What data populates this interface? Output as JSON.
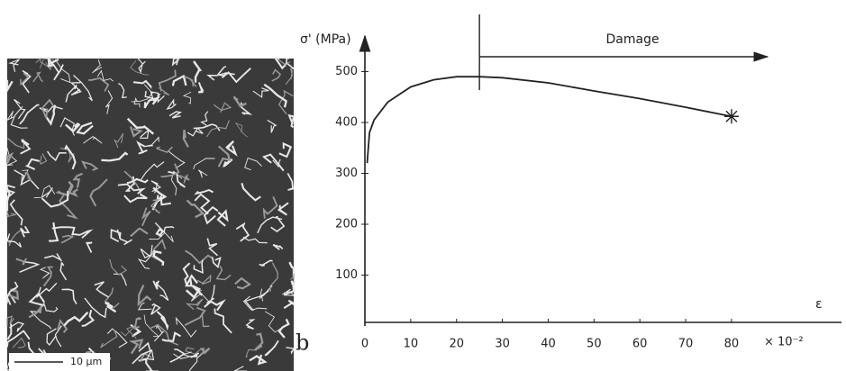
{
  "image": {
    "scale_label": "10 µm"
  },
  "panel_label": "b",
  "chart_data": {
    "type": "line",
    "y_label": "σ' (MPa)",
    "x_label": "ε",
    "x_unit": "× 10⁻²",
    "x": [
      0.5,
      1,
      2,
      5,
      10,
      15,
      20,
      25,
      30,
      40,
      50,
      60,
      70,
      80
    ],
    "values": [
      320,
      380,
      405,
      440,
      470,
      484,
      490,
      490,
      488,
      478,
      462,
      447,
      430,
      412
    ],
    "color": "#222222",
    "xlim": [
      0,
      104
    ],
    "ylim": [
      0,
      570
    ],
    "xticks": [
      0,
      10,
      20,
      30,
      40,
      50,
      60,
      70,
      80
    ],
    "yticks": [
      100,
      200,
      300,
      400,
      500
    ],
    "annotation": {
      "text": "Damage",
      "x_start": 25,
      "x_end": 80
    }
  }
}
